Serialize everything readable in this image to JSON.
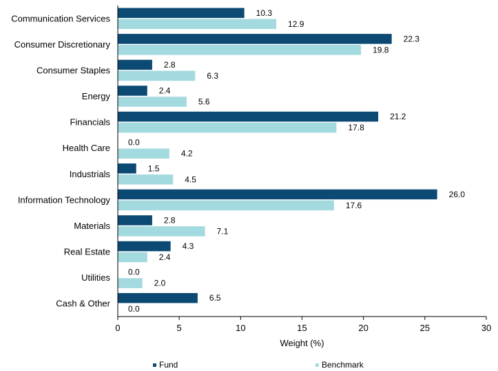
{
  "chart_data": {
    "type": "bar",
    "orientation": "horizontal",
    "title": "",
    "xlabel": "Weight (%)",
    "ylabel": "",
    "xlim": [
      0,
      30
    ],
    "xticks": [
      0,
      5,
      10,
      15,
      20,
      25,
      30
    ],
    "grid": false,
    "legend_position": "bottom",
    "categories": [
      "Communication Services",
      "Consumer Discretionary",
      "Consumer Staples",
      "Energy",
      "Financials",
      "Health Care",
      "Industrials",
      "Information Technology",
      "Materials",
      "Real Estate",
      "Utilities",
      "Cash & Other"
    ],
    "series": [
      {
        "name": "Fund",
        "color": "#0d4a73",
        "values": [
          10.3,
          22.3,
          2.8,
          2.4,
          21.2,
          0.0,
          1.5,
          26.0,
          2.8,
          4.3,
          0.0,
          6.5
        ],
        "labels": [
          "10.3",
          "22.3",
          "2.8",
          "2.4",
          "21.2",
          "0.0",
          "1.5",
          "26.0",
          "2.8",
          "4.3",
          "0.0",
          "6.5"
        ]
      },
      {
        "name": "Benchmark",
        "color": "#a3dae0",
        "values": [
          12.9,
          19.8,
          6.3,
          5.6,
          17.8,
          4.2,
          4.5,
          17.6,
          7.1,
          2.4,
          2.0,
          0.0
        ],
        "labels": [
          "12.9",
          "19.8",
          "6.3",
          "5.6",
          "17.8",
          "4.2",
          "4.5",
          "17.6",
          "7.1",
          "2.4",
          "2.0",
          "0.0"
        ]
      }
    ]
  }
}
